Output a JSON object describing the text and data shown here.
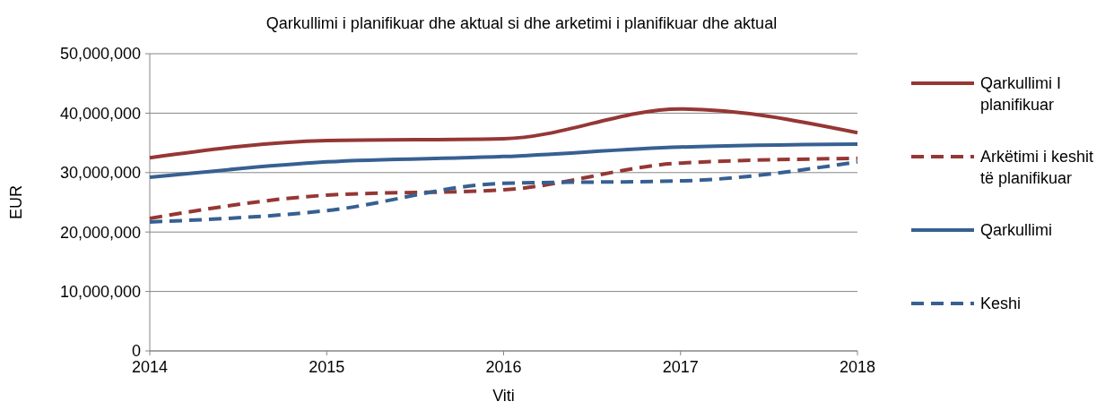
{
  "chart_data": {
    "type": "line",
    "title": "Qarkullimi i planifikuar dhe aktual si dhe arketimi i planifikuar dhe aktual",
    "xlabel": "Viti",
    "ylabel": "EUR",
    "x": [
      2014,
      2015,
      2016,
      2017,
      2018
    ],
    "xlim": [
      2014,
      2018
    ],
    "xticks": [
      2014,
      2015,
      2016,
      2017,
      2018
    ],
    "ylim": [
      0,
      50000000
    ],
    "yticks": [
      {
        "value": 0,
        "label": "0"
      },
      {
        "value": 10000000,
        "label": "10,000,000"
      },
      {
        "value": 20000000,
        "label": "20,000,000"
      },
      {
        "value": 30000000,
        "label": "30,000,000"
      },
      {
        "value": 40000000,
        "label": "40,000,000"
      },
      {
        "value": 50000000,
        "label": "50,000,000"
      }
    ],
    "grid": "y",
    "legend": "right",
    "marker": "none",
    "series": [
      {
        "name": "Qarkullimi I planifikuar",
        "color": "#953735",
        "line_style": "solid",
        "values": [
          32500000,
          35400000,
          35700000,
          40700000,
          36700000
        ]
      },
      {
        "name": "Arkëtimi i keshit të planifikuar",
        "color": "#953735",
        "line_style": "dashed",
        "values": [
          22300000,
          26200000,
          27100000,
          31600000,
          32400000
        ]
      },
      {
        "name": "Qarkullimi",
        "color": "#376092",
        "line_style": "solid",
        "values": [
          29200000,
          31800000,
          32700000,
          34300000,
          34800000
        ]
      },
      {
        "name": "Keshi",
        "color": "#376092",
        "line_style": "dashed",
        "values": [
          21700000,
          23600000,
          28200000,
          28600000,
          31800000
        ]
      }
    ]
  }
}
